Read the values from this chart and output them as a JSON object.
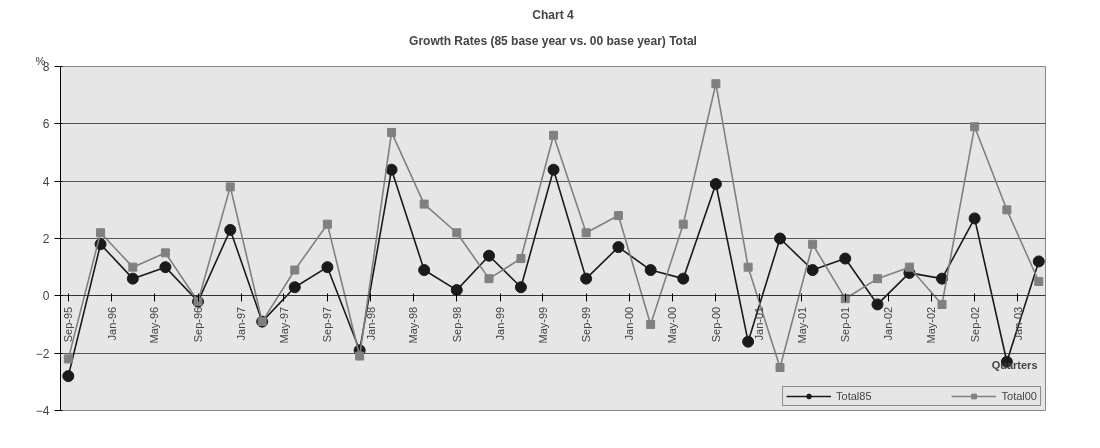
{
  "chart_data": {
    "type": "line",
    "title": "Chart 4",
    "subtitle": "Growth Rates (85 base year vs. 00 base year) Total",
    "xlabel": "Quarters",
    "ylabel": "%",
    "x": [
      "1995-09",
      "1995-12",
      "1996-03",
      "1996-06",
      "1996-09",
      "1996-12",
      "1997-03",
      "1997-06",
      "1997-09",
      "1997-12",
      "1998-03",
      "1998-06",
      "1998-09",
      "1998-12",
      "1999-03",
      "1999-06",
      "1999-09",
      "1999-12",
      "2000-03",
      "2000-06",
      "2000-09",
      "2000-12",
      "2001-03",
      "2001-06",
      "2001-09",
      "2001-12",
      "2002-03",
      "2002-06",
      "2002-09",
      "2002-12",
      "2003-03"
    ],
    "series": [
      {
        "name": "Total85",
        "color": "#1a1a1a",
        "marker": "circle",
        "values": [
          -2.8,
          1.8,
          0.6,
          1.0,
          -0.2,
          2.3,
          -0.9,
          0.3,
          1.0,
          -1.9,
          4.4,
          0.9,
          0.2,
          1.4,
          0.3,
          4.4,
          0.6,
          1.7,
          0.9,
          0.6,
          3.9,
          -1.6,
          2.0,
          0.9,
          1.3,
          -0.3,
          0.8,
          0.6,
          2.7,
          -2.3,
          1.2
        ]
      },
      {
        "name": "Total00",
        "color": "#808080",
        "marker": "square",
        "values": [
          -2.2,
          2.2,
          1.0,
          1.5,
          -0.2,
          3.8,
          -0.9,
          0.9,
          2.5,
          -2.1,
          5.7,
          3.2,
          2.2,
          0.6,
          1.3,
          5.6,
          2.2,
          2.8,
          -1.0,
          2.5,
          7.4,
          1.0,
          -2.5,
          1.8,
          -0.1,
          0.6,
          1.0,
          -0.3,
          5.9,
          3.0,
          0.5
        ]
      }
    ],
    "xlim": [
      "1995-08-10",
      "2003-03-20"
    ],
    "xticks": [
      {
        "value": "1995-09",
        "label": "Sep-95"
      },
      {
        "value": "1996-01",
        "label": "Jan-96"
      },
      {
        "value": "1996-05",
        "label": "May-96"
      },
      {
        "value": "1996-09",
        "label": "Sep-96"
      },
      {
        "value": "1997-01",
        "label": "Jan-97"
      },
      {
        "value": "1997-05",
        "label": "May-97"
      },
      {
        "value": "1997-09",
        "label": "Sep-97"
      },
      {
        "value": "1998-01",
        "label": "Jan-98"
      },
      {
        "value": "1998-05",
        "label": "May-98"
      },
      {
        "value": "1998-09",
        "label": "Sep-98"
      },
      {
        "value": "1999-01",
        "label": "Jan-99"
      },
      {
        "value": "1999-05",
        "label": "May-99"
      },
      {
        "value": "1999-09",
        "label": "Sep-99"
      },
      {
        "value": "2000-01",
        "label": "Jan-00"
      },
      {
        "value": "2000-05",
        "label": "May-00"
      },
      {
        "value": "2000-09",
        "label": "Sep-00"
      },
      {
        "value": "2001-01",
        "label": "Jan-01"
      },
      {
        "value": "2001-05",
        "label": "May-01"
      },
      {
        "value": "2001-09",
        "label": "Sep-01"
      },
      {
        "value": "2002-01",
        "label": "Jan-02"
      },
      {
        "value": "2002-05",
        "label": "May-02"
      },
      {
        "value": "2002-09",
        "label": "Sep-02"
      },
      {
        "value": "2003-01",
        "label": "Jan-03"
      }
    ],
    "ylim": [
      -4,
      8
    ],
    "yticks": [
      -4,
      -2,
      0,
      2,
      4,
      6,
      8
    ],
    "grid": "y",
    "legend": "bottom right",
    "line_style": "solid"
  }
}
